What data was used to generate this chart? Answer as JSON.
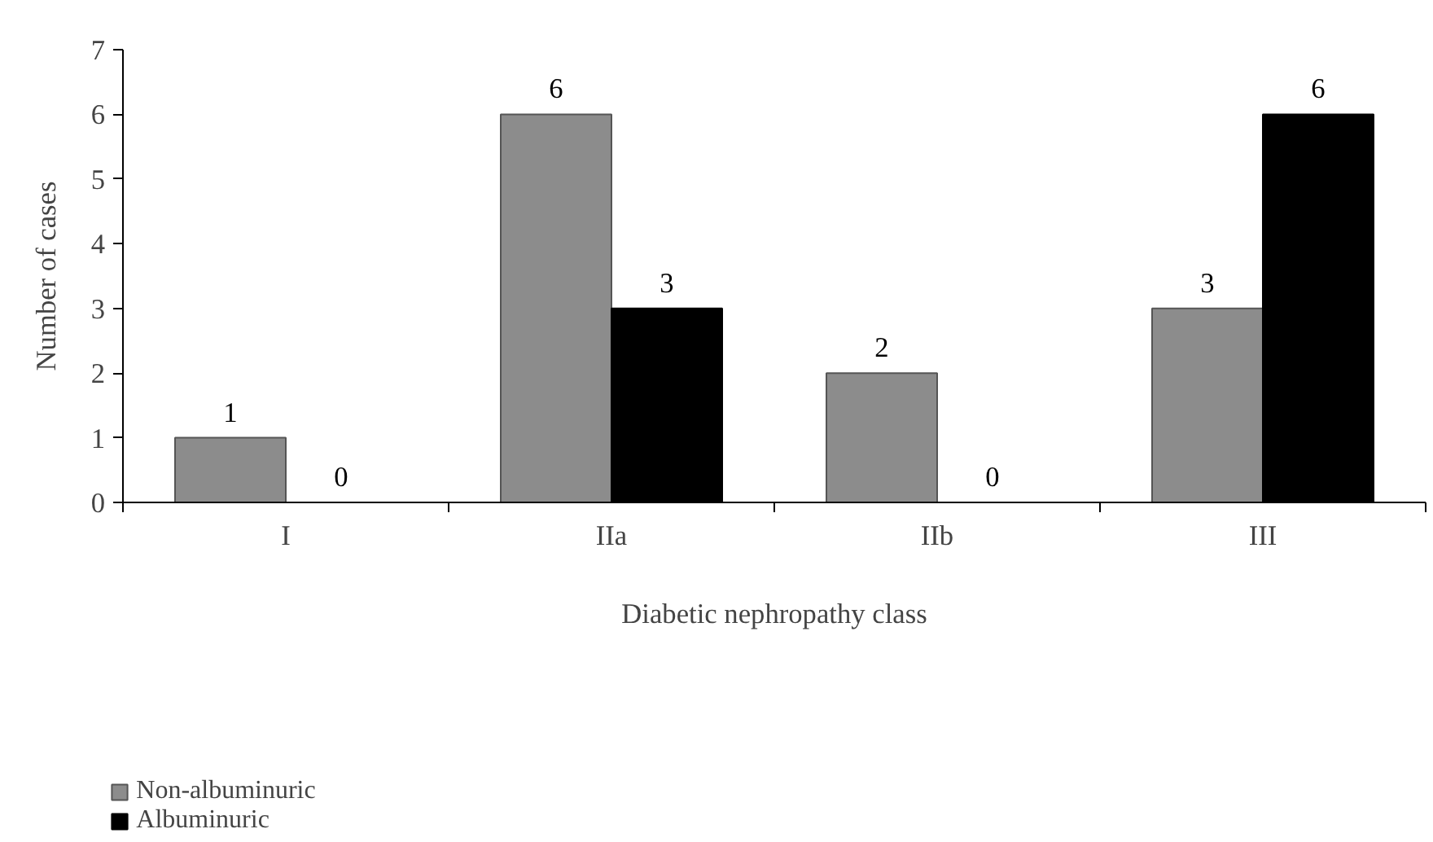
{
  "chart_data": {
    "type": "bar",
    "xlabel": "Diabetic nephropathy class",
    "ylabel": "Number of cases",
    "categories": [
      "I",
      "IIa",
      "IIb",
      "III"
    ],
    "series": [
      {
        "name": "Non-albuminuric",
        "color": "#8c8c8c",
        "values": [
          1,
          6,
          2,
          3
        ]
      },
      {
        "name": "Albuminuric",
        "color": "#000000",
        "values": [
          0,
          3,
          0,
          6
        ]
      }
    ],
    "ylim": [
      0,
      7
    ],
    "yticks": [
      0,
      1,
      2,
      3,
      4,
      5,
      6,
      7
    ],
    "data_labels": true,
    "grid": false,
    "legend": "bottom left"
  }
}
